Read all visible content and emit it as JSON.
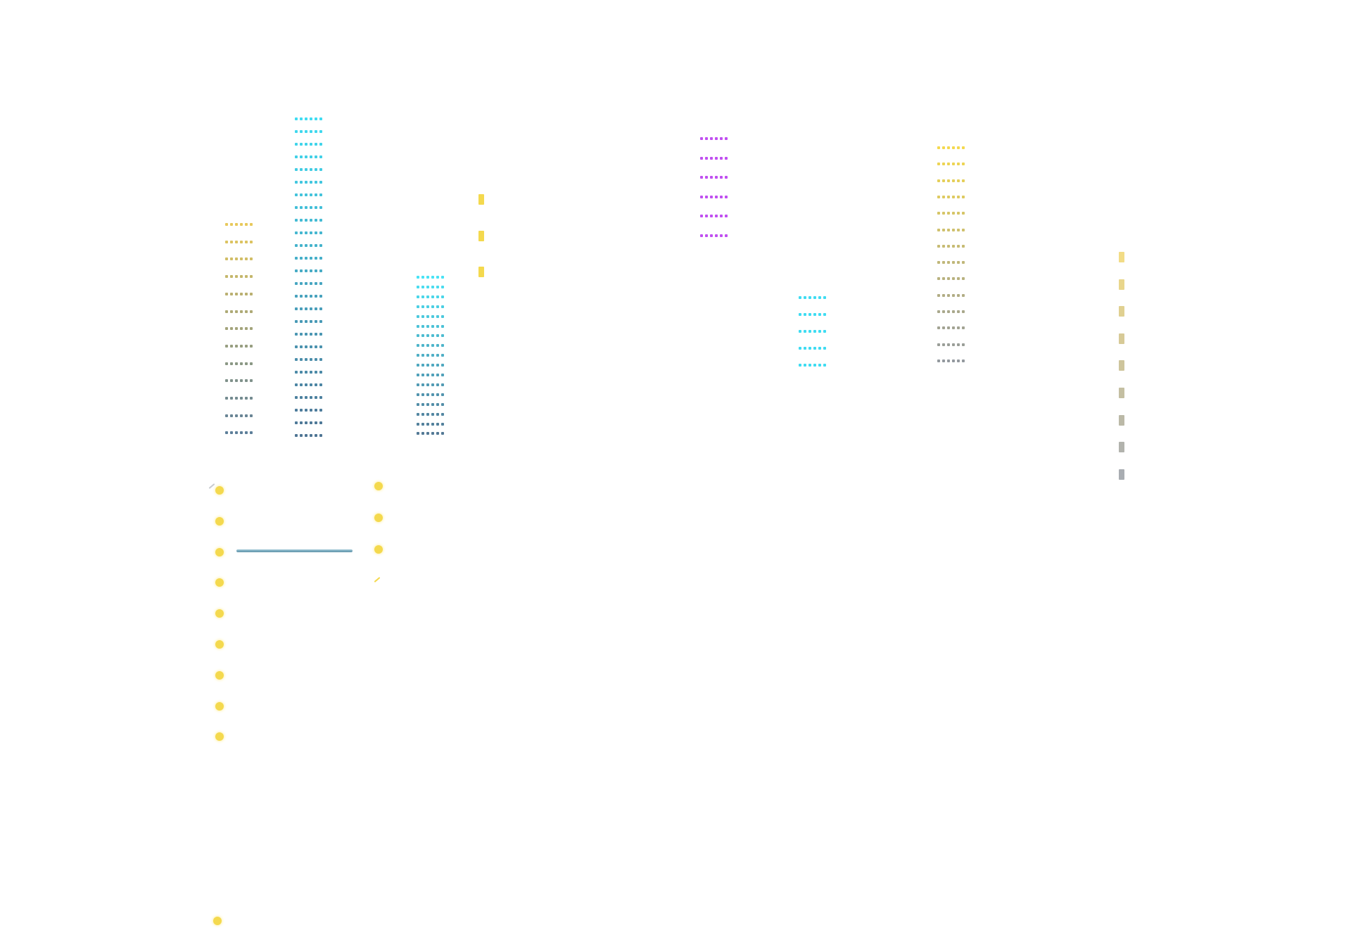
{
  "palette": {
    "gold": "#e8c95c",
    "cyan": "#3fdcf2",
    "slate": "#5d7f9a",
    "violet": "#c050f0",
    "yellow": "#f4d94e",
    "pale_gold": "#f2dc86",
    "gray": "#a9adb2",
    "line_blue": "#6aa3b8"
  },
  "elements": {
    "dotted_columns": [
      {
        "id": "column-a",
        "color_start": "#e8c95c",
        "color_end": "#5d7f9a",
        "rows": 13,
        "cells": 6
      },
      {
        "id": "column-b",
        "color_start": "#3fdcf2",
        "color_end": "#4f7594",
        "rows": 26,
        "cells": 6
      },
      {
        "id": "column-c",
        "color_start": "#49e3f5",
        "color_end": "#547a96",
        "rows": 17,
        "cells": 6
      },
      {
        "id": "column-d",
        "color_start": "#c050f0",
        "color_end": "#c050f0",
        "rows": 6,
        "cells": 6
      },
      {
        "id": "column-e",
        "color_start": "#3fdcf2",
        "color_end": "#3fdcf2",
        "rows": 5,
        "cells": 6
      },
      {
        "id": "column-f",
        "color_start": "#f4d94e",
        "color_end": "#93999e",
        "rows": 14,
        "cells": 6
      }
    ],
    "dash_columns": [
      {
        "id": "dash-column-short",
        "color_start": "#f4d94e",
        "color_end": "#f4d94e",
        "count": 3
      },
      {
        "id": "dash-column-long",
        "color_start": "#f2dc86",
        "color_end": "#a9adb2",
        "count": 9
      }
    ],
    "dot_columns": [
      {
        "id": "dot-column-left",
        "color": "#f4d94e",
        "count": 9
      },
      {
        "id": "dot-column-right",
        "color": "#f4d94e",
        "count": 3
      }
    ],
    "single_dots": [
      {
        "id": "bottom-dot",
        "color": "#f4d94e"
      }
    ],
    "lines": [
      {
        "id": "horizontal-line",
        "color": "#6aa3b8"
      }
    ]
  }
}
